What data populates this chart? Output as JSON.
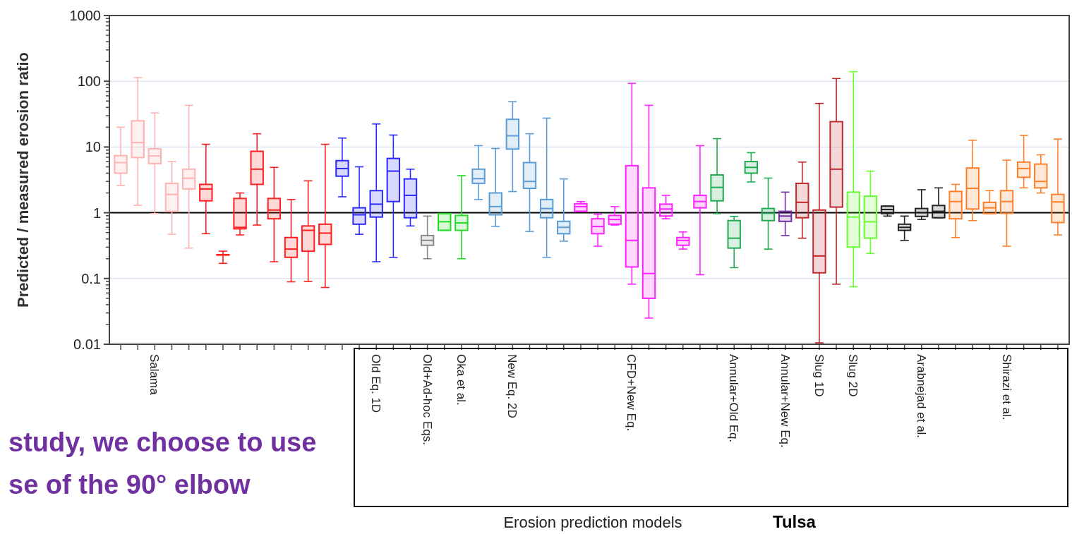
{
  "chart_data": {
    "type": "box",
    "xlabel": "Erosion prediction models",
    "ylabel": "Predicted / measured erosion ratio",
    "annotations": [
      "study, we choose to use",
      "se of the 90° elbow",
      "Tulsa"
    ],
    "categories": [
      null,
      null,
      "Salama",
      null,
      null,
      null,
      null,
      null,
      null,
      null,
      null,
      null,
      null,
      null,
      null,
      "Old Eq. 1D",
      null,
      null,
      "Old+Ad-hoc Eqs.",
      null,
      "Oka et al.",
      null,
      null,
      "New Eq. 2D",
      null,
      null,
      null,
      null,
      null,
      null,
      "CFD+New Eq.",
      null,
      null,
      null,
      null,
      null,
      "Annular+Old Eq.",
      null,
      null,
      "Annular+New Eq.",
      null,
      "Slug 1D",
      null,
      "Slug 2D",
      null,
      null,
      null,
      "Arabnejad et al.",
      null,
      null,
      null,
      null,
      "Shirazi et al.",
      null,
      null,
      null
    ],
    "boxes": [
      {
        "low": 2.6,
        "q1": 4.0,
        "median": 5.8,
        "q3": 7.4,
        "high": 20
      },
      {
        "low": 1.3,
        "q1": 6.9,
        "median": 11.7,
        "q3": 25,
        "high": 114
      },
      {
        "low": 0.97,
        "q1": 5.6,
        "median": 7.3,
        "q3": 9.4,
        "high": 33
      },
      {
        "low": 0.47,
        "q1": 1.05,
        "median": 1.9,
        "q3": 2.8,
        "high": 6.0
      },
      {
        "low": 0.29,
        "q1": 2.3,
        "median": 3.35,
        "q3": 4.6,
        "high": 43
      },
      {
        "low": 0.48,
        "q1": 1.52,
        "median": 2.3,
        "q3": 2.7,
        "high": 11
      },
      {
        "low": 0.17,
        "q1": 0.23,
        "median": 0.23,
        "q3": 0.23,
        "high": 0.26
      },
      {
        "low": 0.46,
        "q1": 0.57,
        "median": 0.6,
        "q3": 1.65,
        "high": 2.0
      },
      {
        "low": 0.65,
        "q1": 2.7,
        "median": 4.6,
        "q3": 8.6,
        "high": 15.9
      },
      {
        "low": 0.18,
        "q1": 0.81,
        "median": 1.1,
        "q3": 1.65,
        "high": 4.9
      },
      {
        "low": 0.089,
        "q1": 0.21,
        "median": 0.28,
        "q3": 0.42,
        "high": 1.59
      },
      {
        "low": 0.09,
        "q1": 0.26,
        "median": 0.54,
        "q3": 0.63,
        "high": 3.06
      },
      {
        "low": 0.073,
        "q1": 0.33,
        "median": 0.49,
        "q3": 0.67,
        "high": 11
      },
      {
        "low": 1.75,
        "q1": 3.6,
        "median": 4.7,
        "q3": 6.2,
        "high": 13.7
      },
      {
        "low": 0.47,
        "q1": 0.67,
        "median": 0.93,
        "q3": 1.19,
        "high": 5.0
      },
      {
        "low": 0.18,
        "q1": 0.86,
        "median": 1.35,
        "q3": 2.17,
        "high": 22.4
      },
      {
        "low": 0.21,
        "q1": 1.48,
        "median": 4.3,
        "q3": 6.7,
        "high": 15.2
      },
      {
        "low": 0.63,
        "q1": 0.84,
        "median": 1.84,
        "q3": 3.27,
        "high": 4.6
      },
      {
        "low": 0.2,
        "q1": 0.32,
        "median": 0.38,
        "q3": 0.45,
        "high": 0.89
      },
      {
        "low": 0.54,
        "q1": 0.54,
        "median": 0.73,
        "q3": 0.97,
        "high": 0.97
      },
      {
        "low": 0.2,
        "q1": 0.54,
        "median": 0.7,
        "q3": 0.91,
        "high": 3.67
      },
      {
        "low": 1.59,
        "q1": 2.8,
        "median": 3.3,
        "q3": 4.6,
        "high": 10.5
      },
      {
        "low": 0.62,
        "q1": 0.93,
        "median": 1.24,
        "q3": 2.0,
        "high": 9.5
      },
      {
        "low": 2.1,
        "q1": 9.3,
        "median": 14.8,
        "q3": 26.4,
        "high": 49
      },
      {
        "low": 0.52,
        "q1": 2.35,
        "median": 3.0,
        "q3": 5.8,
        "high": 15.9
      },
      {
        "low": 0.21,
        "q1": 0.84,
        "median": 1.16,
        "q3": 1.59,
        "high": 27.5
      },
      {
        "low": 0.37,
        "q1": 0.48,
        "median": 0.6,
        "q3": 0.74,
        "high": 3.27
      },
      {
        "low": 1.05,
        "q1": 1.05,
        "median": 1.24,
        "q3": 1.37,
        "high": 1.48
      },
      {
        "low": 0.31,
        "q1": 0.48,
        "median": 0.62,
        "q3": 0.81,
        "high": 0.95
      },
      {
        "low": 0.65,
        "q1": 0.67,
        "median": 0.79,
        "q3": 0.91,
        "high": 1.24
      },
      {
        "low": 0.082,
        "q1": 0.15,
        "median": 0.38,
        "q3": 5.2,
        "high": 93
      },
      {
        "low": 0.025,
        "q1": 0.05,
        "median": 0.119,
        "q3": 2.39,
        "high": 43
      },
      {
        "low": 0.81,
        "q1": 0.89,
        "median": 1.14,
        "q3": 1.35,
        "high": 1.84
      },
      {
        "low": 0.28,
        "q1": 0.32,
        "median": 0.38,
        "q3": 0.42,
        "high": 0.51
      },
      {
        "low": 0.114,
        "q1": 1.19,
        "median": 1.48,
        "q3": 1.84,
        "high": 10.5
      },
      {
        "low": 0.97,
        "q1": 1.52,
        "median": 2.43,
        "q3": 3.76,
        "high": 13.4
      },
      {
        "low": 0.146,
        "q1": 0.29,
        "median": 0.41,
        "q3": 0.76,
        "high": 0.88
      },
      {
        "low": 2.94,
        "q1": 4.0,
        "median": 4.9,
        "q3": 6.0,
        "high": 8.2
      },
      {
        "low": 0.28,
        "q1": 0.76,
        "median": 0.98,
        "q3": 1.16,
        "high": 3.37
      },
      {
        "low": 0.45,
        "q1": 0.74,
        "median": 0.89,
        "q3": 1.05,
        "high": 2.06
      },
      {
        "low": 0.41,
        "q1": 0.84,
        "median": 1.44,
        "q3": 2.8,
        "high": 5.9
      },
      {
        "low": 0.0105,
        "q1": 0.122,
        "median": 0.22,
        "q3": 1.1,
        "high": 46
      },
      {
        "low": 0.082,
        "q1": 1.22,
        "median": 4.6,
        "q3": 24.3,
        "high": 110
      },
      {
        "low": 0.075,
        "q1": 0.3,
        "median": 0.86,
        "q3": 2.06,
        "high": 140
      },
      {
        "low": 0.24,
        "q1": 0.41,
        "median": 0.73,
        "q3": 1.79,
        "high": 4.3
      },
      {
        "low": 0.89,
        "q1": 0.97,
        "median": 1.12,
        "q3": 1.26,
        "high": 1.26
      },
      {
        "low": 0.38,
        "q1": 0.54,
        "median": 0.6,
        "q3": 0.67,
        "high": 0.89
      },
      {
        "low": 0.79,
        "q1": 0.88,
        "median": 1.01,
        "q3": 1.16,
        "high": 2.24
      },
      {
        "low": 0.84,
        "q1": 0.84,
        "median": 1.05,
        "q3": 1.29,
        "high": 2.39
      },
      {
        "low": 0.42,
        "q1": 0.81,
        "median": 1.48,
        "q3": 2.11,
        "high": 2.7
      },
      {
        "low": 0.76,
        "q1": 1.14,
        "median": 2.35,
        "q3": 4.8,
        "high": 12.7
      },
      {
        "low": 0.97,
        "q1": 0.97,
        "median": 1.19,
        "q3": 1.44,
        "high": 2.17
      },
      {
        "low": 0.31,
        "q1": 0.98,
        "median": 1.48,
        "q3": 2.17,
        "high": 6.3
      },
      {
        "low": 2.39,
        "q1": 3.46,
        "median": 4.7,
        "q3": 5.9,
        "high": 15
      },
      {
        "low": 2.0,
        "q1": 2.39,
        "median": 3.0,
        "q3": 5.5,
        "high": 7.6
      },
      {
        "low": 0.46,
        "q1": 0.71,
        "median": 1.46,
        "q3": 1.9,
        "high": 13.2
      }
    ],
    "colors": [
      "#ffb3b3",
      "#ffb3b3",
      "#ffb3b3",
      "#ffb3b3",
      "#ffb3b3",
      "#ff2020",
      "#ff2020",
      "#ff2020",
      "#ff2020",
      "#ff2020",
      "#ff2020",
      "#ff2020",
      "#ff2020",
      "#2a2aff",
      "#2a2aff",
      "#2a2aff",
      "#2a2aff",
      "#2a2aff",
      "#888888",
      "#22dd22",
      "#22dd22",
      "#5b9bd5",
      "#5b9bd5",
      "#5b9bd5",
      "#5b9bd5",
      "#5b9bd5",
      "#5b9bd5",
      "#ff22ff",
      "#ff22ff",
      "#ff22ff",
      "#ff22ff",
      "#ff22ff",
      "#ff22ff",
      "#ff22ff",
      "#ff22ff",
      "#22aa55",
      "#22aa55",
      "#22aa55",
      "#22aa55",
      "#7030a0",
      "#c0282e",
      "#c0282e",
      "#c0282e",
      "#66ff33",
      "#66ff33",
      "#222222",
      "#222222",
      "#222222",
      "#222222",
      "#ff7f27",
      "#ff7f27",
      "#ff7f27",
      "#ff7f27",
      "#ff7f27",
      "#ff7f27",
      "#ff7f27"
    ],
    "log": "y",
    "ylim": [
      0.01,
      1000
    ],
    "yticks": [
      0.01,
      0.1,
      1,
      10,
      100,
      1000
    ],
    "grid": "y",
    "ref_lines": [
      {
        "axis": "y",
        "value": 1,
        "color": "#000000"
      }
    ]
  }
}
